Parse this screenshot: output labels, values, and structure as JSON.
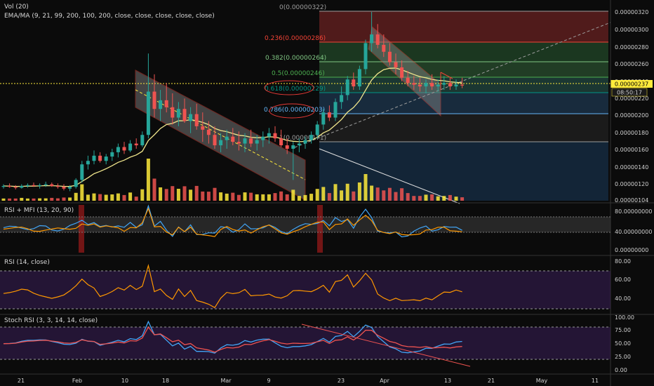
{
  "header": {
    "vol_label": "Vol (20)",
    "ema_label": "EMA/MA (9, 21, 99, 200, 100, 200, close, close, close, close, close)"
  },
  "price_axis": {
    "ticks": [
      "0.00000320",
      "0.00000300",
      "0.00000280",
      "0.00000260",
      "0.00000240",
      "0.00000220",
      "0.00000200",
      "0.00000180",
      "0.00000160",
      "0.00000140",
      "0.00000120",
      "0.00000104"
    ],
    "current_price": "0.00000237",
    "countdown": "08:50:17"
  },
  "x_axis": {
    "ticks": [
      "21",
      "Feb",
      "10",
      "18",
      "Mar",
      "9",
      "23",
      "Apr",
      "13",
      "21",
      "May",
      "11"
    ]
  },
  "fib": {
    "levels": [
      {
        "label": "0(0.00000322)",
        "ratio": 0,
        "color": "#9e9e9e"
      },
      {
        "label": "0.236(0.00000286)",
        "ratio": 0.236,
        "color": "#f44336"
      },
      {
        "label": "0.382(0.00000264)",
        "ratio": 0.382,
        "color": "#81c784"
      },
      {
        "label": "0.5(0.00000246)",
        "ratio": 0.5,
        "color": "#4caf50"
      },
      {
        "label": "0.618(0.00000229)",
        "ratio": 0.618,
        "color": "#009688"
      },
      {
        "label": "0.786(0.00000203)",
        "ratio": 0.786,
        "color": "#64b5f6"
      },
      {
        "label": "1(0.00000171)",
        "ratio": 1,
        "color": "#9e9e9e"
      }
    ]
  },
  "rsi_mfi": {
    "title": "RSI + MFI (13, 20, 90)",
    "ticks": [
      "80.00000000",
      "40.00000000",
      "0.00000000"
    ]
  },
  "rsi": {
    "title": "RSI (14, close)",
    "ticks": [
      "80.00",
      "60.00",
      "40.00"
    ]
  },
  "stoch": {
    "title": "Stoch RSI (3, 3, 14, 14, close)",
    "ticks": [
      "100.00",
      "75.00",
      "50.00",
      "25.00",
      "0.00"
    ]
  },
  "colors": {
    "up": "#26a69a",
    "down": "#ef5350",
    "vol_up": "#ffeb3b",
    "vol_down": "#ef5350",
    "ema": "#f0e68c",
    "rsi_line": "#ff9800",
    "mfi_line": "#42a5f5",
    "stoch_k": "#42a5f5",
    "stoch_d": "#ef5350",
    "price_badge": "#ffeb3b"
  },
  "chart_data": {
    "type": "candlestick",
    "candles": [
      [
        120,
        123,
        118,
        121
      ],
      [
        121,
        124,
        119,
        120
      ],
      [
        120,
        122,
        117,
        119
      ],
      [
        119,
        123,
        118,
        121
      ],
      [
        121,
        124,
        119,
        122
      ],
      [
        122,
        125,
        120,
        121
      ],
      [
        121,
        124,
        118,
        122
      ],
      [
        122,
        126,
        120,
        123
      ],
      [
        123,
        125,
        120,
        121
      ],
      [
        121,
        124,
        118,
        120
      ],
      [
        120,
        123,
        116,
        118
      ],
      [
        118,
        122,
        115,
        120
      ],
      [
        120,
        130,
        118,
        128
      ],
      [
        128,
        150,
        125,
        146
      ],
      [
        146,
        156,
        140,
        150
      ],
      [
        150,
        162,
        146,
        156
      ],
      [
        156,
        160,
        148,
        150
      ],
      [
        150,
        158,
        146,
        155
      ],
      [
        155,
        164,
        150,
        160
      ],
      [
        160,
        170,
        154,
        166
      ],
      [
        166,
        172,
        158,
        162
      ],
      [
        162,
        174,
        160,
        170
      ],
      [
        170,
        176,
        164,
        168
      ],
      [
        168,
        184,
        166,
        180
      ],
      [
        180,
        274,
        176,
        230
      ],
      [
        230,
        250,
        200,
        210
      ],
      [
        210,
        232,
        196,
        220
      ],
      [
        220,
        240,
        206,
        212
      ],
      [
        212,
        228,
        192,
        200
      ],
      [
        200,
        218,
        190,
        210
      ],
      [
        210,
        222,
        194,
        196
      ],
      [
        196,
        212,
        182,
        204
      ],
      [
        204,
        216,
        186,
        190
      ],
      [
        190,
        206,
        172,
        186
      ],
      [
        186,
        196,
        170,
        180
      ],
      [
        180,
        190,
        164,
        168
      ],
      [
        168,
        182,
        160,
        174
      ],
      [
        174,
        186,
        164,
        178
      ],
      [
        178,
        188,
        168,
        172
      ],
      [
        172,
        184,
        162,
        170
      ],
      [
        170,
        182,
        160,
        176
      ],
      [
        176,
        186,
        166,
        170
      ],
      [
        170,
        180,
        162,
        174
      ],
      [
        174,
        184,
        166,
        178
      ],
      [
        178,
        188,
        170,
        182
      ],
      [
        182,
        190,
        172,
        176
      ],
      [
        176,
        186,
        166,
        168
      ],
      [
        168,
        176,
        158,
        164
      ],
      [
        164,
        172,
        128,
        168
      ],
      [
        168,
        176,
        160,
        170
      ],
      [
        170,
        178,
        164,
        174
      ],
      [
        174,
        184,
        170,
        180
      ],
      [
        180,
        196,
        176,
        192
      ],
      [
        192,
        210,
        186,
        206
      ],
      [
        206,
        214,
        196,
        200
      ],
      [
        200,
        222,
        196,
        218
      ],
      [
        218,
        236,
        210,
        226
      ],
      [
        226,
        248,
        220,
        244
      ],
      [
        244,
        252,
        232,
        236
      ],
      [
        236,
        260,
        232,
        256
      ],
      [
        256,
        290,
        250,
        286
      ],
      [
        286,
        322,
        276,
        296
      ],
      [
        296,
        308,
        280,
        284
      ],
      [
        284,
        296,
        270,
        276
      ],
      [
        276,
        286,
        260,
        264
      ],
      [
        264,
        274,
        250,
        258
      ],
      [
        258,
        266,
        242,
        246
      ],
      [
        246,
        254,
        236,
        240
      ],
      [
        240,
        248,
        232,
        238
      ],
      [
        238,
        246,
        230,
        236
      ],
      [
        236,
        244,
        228,
        240
      ],
      [
        240,
        250,
        232,
        236
      ],
      [
        236,
        244,
        230,
        238
      ],
      [
        238,
        248,
        232,
        240
      ],
      [
        240,
        246,
        232,
        236
      ],
      [
        236,
        244,
        232,
        238
      ],
      [
        238,
        246,
        234,
        237
      ]
    ]
  }
}
